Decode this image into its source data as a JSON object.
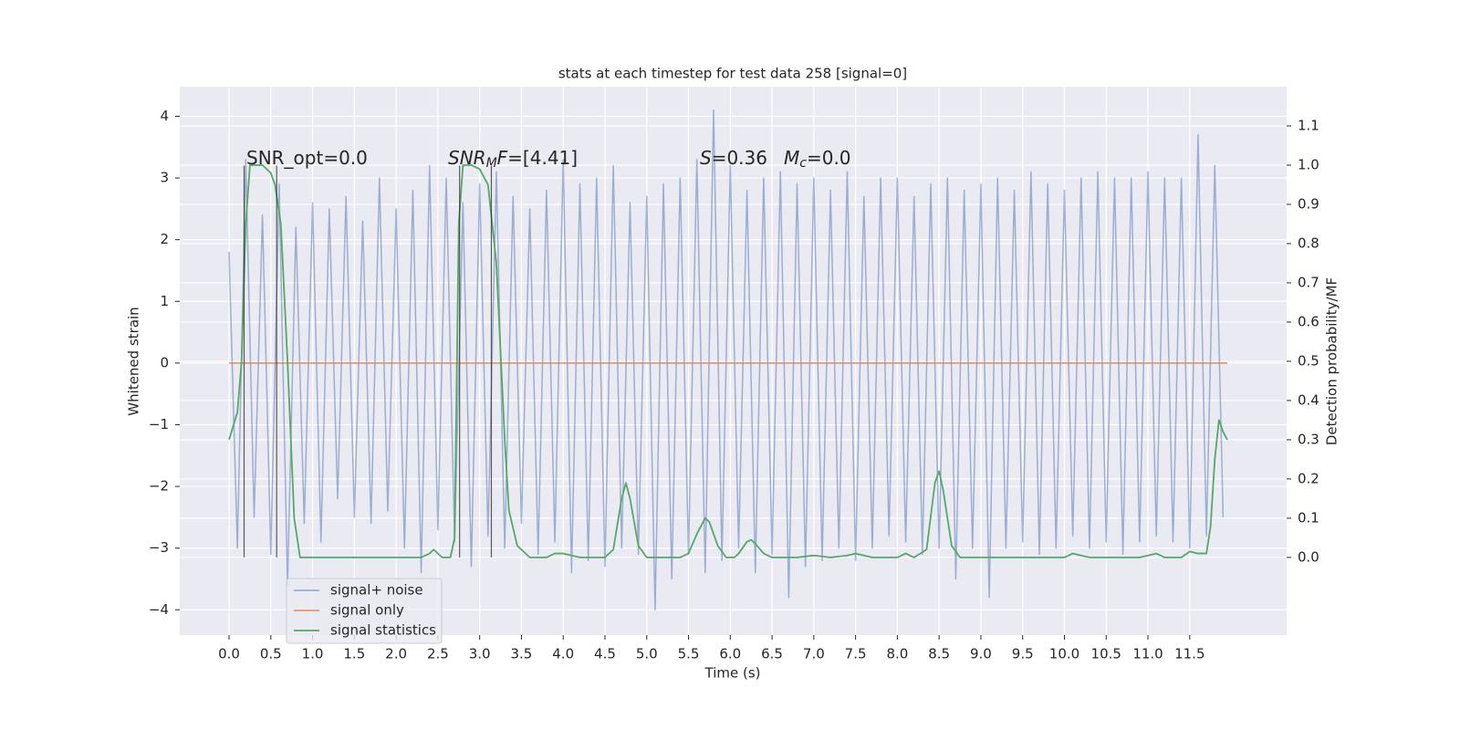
{
  "chart_data": {
    "type": "line",
    "title": "stats at each timestep for test data 258 [signal=0]",
    "xlabel": "Time (s)",
    "ylabel": "Whitened strain",
    "y2label": "Detection probability/MF",
    "xlim": [
      -0.59,
      12.66
    ],
    "ylim": [
      -4.41,
      4.48
    ],
    "y2lim": [
      -0.198,
      1.2
    ],
    "grid": true,
    "legend": "lower left",
    "xticks": [
      {
        "value": 0,
        "label": "0.0"
      },
      0.5,
      {
        "value": 1,
        "label": "1.0"
      },
      1.5,
      {
        "value": 2,
        "label": "2.0"
      },
      2.5,
      {
        "value": 3,
        "label": "3.0"
      },
      3.5,
      {
        "value": 4,
        "label": "4.0"
      },
      4.5,
      {
        "value": 5,
        "label": "5.0"
      },
      5.5,
      {
        "value": 6,
        "label": "6.0"
      },
      6.5,
      {
        "value": 7,
        "label": "7.0"
      },
      7.5,
      {
        "value": 8,
        "label": "8.0"
      },
      8.5,
      {
        "value": 9,
        "label": "9.0"
      },
      9.5,
      {
        "value": 10,
        "label": "10.0"
      },
      10.5,
      {
        "value": 11,
        "label": "11.0"
      },
      11.5
    ],
    "yticks": [
      {
        "value": -4,
        "label": "−4"
      },
      {
        "value": -3,
        "label": "−3"
      },
      {
        "value": -2,
        "label": "−2"
      },
      {
        "value": -1,
        "label": "−1"
      },
      0,
      1,
      2,
      3,
      4
    ],
    "y2ticks": [
      {
        "value": 0,
        "label": "0.0"
      },
      0.1,
      0.2,
      0.3,
      0.4,
      0.5,
      0.6,
      0.7,
      0.8,
      0.9,
      {
        "value": 1,
        "label": "1.0"
      },
      1.1
    ],
    "series": [
      {
        "name": "signal+ noise",
        "color": "#4c72b0",
        "opacity": 0.5,
        "x": [
          0.0,
          0.1,
          0.2,
          0.3,
          0.4,
          0.5,
          0.6,
          0.7,
          0.8,
          0.9,
          1.0,
          1.1,
          1.2,
          1.3,
          1.4,
          1.5,
          1.6,
          1.7,
          1.8,
          1.9,
          2.0,
          2.1,
          2.2,
          2.3,
          2.4,
          2.5,
          2.6,
          2.7,
          2.8,
          2.9,
          3.0,
          3.1,
          3.2,
          3.3,
          3.4,
          3.5,
          3.6,
          3.7,
          3.8,
          3.9,
          4.0,
          4.1,
          4.2,
          4.3,
          4.4,
          4.5,
          4.6,
          4.7,
          4.8,
          4.9,
          5.0,
          5.1,
          5.2,
          5.3,
          5.4,
          5.5,
          5.6,
          5.7,
          5.8,
          5.9,
          6.0,
          6.1,
          6.2,
          6.3,
          6.4,
          6.5,
          6.6,
          6.7,
          6.8,
          6.9,
          7.0,
          7.1,
          7.2,
          7.3,
          7.4,
          7.5,
          7.6,
          7.7,
          7.8,
          7.9,
          8.0,
          8.1,
          8.2,
          8.3,
          8.4,
          8.5,
          8.6,
          8.7,
          8.8,
          8.9,
          9.0,
          9.1,
          9.2,
          9.3,
          9.4,
          9.5,
          9.6,
          9.7,
          9.8,
          9.9,
          10.0,
          10.1,
          10.2,
          10.3,
          10.4,
          10.5,
          10.6,
          10.7,
          10.8,
          10.9,
          11.0,
          11.1,
          11.2,
          11.3,
          11.4,
          11.5,
          11.6,
          11.7,
          11.8,
          11.9
        ],
        "values": [
          1.8,
          -3.0,
          3.3,
          -2.5,
          2.4,
          -3.1,
          2.9,
          -3.6,
          2.2,
          -2.6,
          2.6,
          -2.9,
          2.5,
          -2.2,
          2.7,
          -2.5,
          2.3,
          -2.6,
          3.0,
          -2.4,
          2.5,
          -3.0,
          2.8,
          -3.4,
          3.2,
          -2.7,
          3.0,
          -2.9,
          2.6,
          -3.3,
          2.9,
          -2.8,
          3.1,
          -3.0,
          2.7,
          -2.6,
          2.5,
          -3.1,
          2.8,
          -2.9,
          3.3,
          -3.4,
          2.9,
          -3.2,
          3.0,
          -3.3,
          3.2,
          -3.0,
          2.6,
          -3.1,
          2.7,
          -4.0,
          2.9,
          -3.5,
          3.0,
          -3.1,
          3.3,
          -3.4,
          4.1,
          -3.2,
          3.2,
          -3.0,
          2.8,
          -3.4,
          3.0,
          -3.1,
          3.1,
          -3.8,
          2.9,
          -3.3,
          3.0,
          -3.2,
          2.8,
          -3.0,
          3.1,
          -3.2,
          2.7,
          -3.0,
          3.0,
          -2.8,
          3.0,
          -2.9,
          2.7,
          -3.1,
          2.9,
          -3.0,
          3.0,
          -3.5,
          2.8,
          -3.0,
          2.9,
          -3.8,
          3.0,
          -3.0,
          2.8,
          -2.9,
          3.1,
          -3.1,
          2.9,
          -3.0,
          2.8,
          -2.8,
          3.0,
          -3.0,
          3.1,
          -2.9,
          3.0,
          -3.1,
          3.0,
          -2.9,
          3.1,
          -2.8,
          3.0,
          -2.9,
          3.0,
          -3.0,
          3.7,
          -2.8,
          3.2,
          -2.5
        ]
      },
      {
        "name": "signal only",
        "color": "#dd8452",
        "opacity": 0.8,
        "x": [
          0.0,
          11.95
        ],
        "values": [
          0,
          0
        ]
      },
      {
        "name": "signal statistics",
        "color": "#55a868",
        "opacity": 1,
        "axis": "y2",
        "x": [
          0.0,
          0.1,
          0.15,
          0.2,
          0.25,
          0.3,
          0.4,
          0.5,
          0.55,
          0.62,
          0.7,
          0.78,
          0.85,
          1.0,
          2.3,
          2.4,
          2.45,
          2.55,
          2.65,
          2.7,
          2.75,
          2.8,
          2.9,
          3.0,
          3.1,
          3.2,
          3.3,
          3.35,
          3.45,
          3.6,
          3.8,
          3.9,
          4.0,
          4.2,
          4.5,
          4.6,
          4.7,
          4.75,
          4.8,
          4.9,
          5.0,
          5.4,
          5.5,
          5.6,
          5.7,
          5.75,
          5.85,
          5.95,
          6.05,
          6.1,
          6.2,
          6.25,
          6.3,
          6.4,
          6.5,
          6.8,
          7.0,
          7.2,
          7.4,
          7.5,
          7.7,
          8.0,
          8.1,
          8.2,
          8.35,
          8.45,
          8.5,
          8.55,
          8.65,
          8.75,
          9.0,
          10.0,
          10.1,
          10.3,
          10.9,
          11.0,
          11.1,
          11.2,
          11.4,
          11.5,
          11.6,
          11.7,
          11.75,
          11.8,
          11.85,
          11.9,
          11.95
        ],
        "values": [
          0.3,
          0.37,
          0.5,
          0.85,
          1.0,
          1.0,
          1.0,
          0.98,
          0.95,
          0.85,
          0.5,
          0.1,
          0.0,
          0.0,
          0.0,
          0.01,
          0.02,
          0.0,
          0.0,
          0.05,
          0.85,
          1.0,
          1.0,
          0.99,
          0.95,
          0.75,
          0.3,
          0.12,
          0.03,
          0.0,
          0.0,
          0.01,
          0.01,
          0.0,
          0.0,
          0.02,
          0.15,
          0.19,
          0.15,
          0.03,
          0.0,
          0.0,
          0.01,
          0.06,
          0.1,
          0.09,
          0.03,
          0.0,
          0.0,
          0.01,
          0.04,
          0.045,
          0.035,
          0.01,
          0.0,
          0.0,
          0.005,
          0.0,
          0.005,
          0.01,
          0.0,
          0.0,
          0.01,
          0.0,
          0.02,
          0.19,
          0.22,
          0.17,
          0.03,
          0.0,
          0.0,
          0.0,
          0.01,
          0.0,
          0.0,
          0.005,
          0.01,
          0.0,
          0.0,
          0.015,
          0.01,
          0.01,
          0.08,
          0.25,
          0.35,
          0.32,
          0.3
        ]
      }
    ],
    "vlines": {
      "x": [
        0.18,
        0.57,
        2.76,
        3.14
      ],
      "ymin": -3.15,
      "ymax": 3.2,
      "color": "#333333"
    },
    "annotations": [
      [
        {
          "text": "SNR_opt=0.0",
          "style": "normal"
        }
      ],
      [
        {
          "text": "SNR",
          "style": "italic"
        },
        {
          "text": "M",
          "style": "sub-italic"
        },
        {
          "text": "F",
          "style": "italic"
        },
        {
          "text": "=[4.41]",
          "style": "normal"
        }
      ],
      [
        {
          "text": "S",
          "style": "italic"
        },
        {
          "text": "=0.36",
          "style": "normal"
        }
      ],
      [
        {
          "text": "M",
          "style": "italic"
        },
        {
          "text": "c",
          "style": "sub-italic"
        },
        {
          "text": "=0.0",
          "style": "normal"
        }
      ]
    ]
  }
}
